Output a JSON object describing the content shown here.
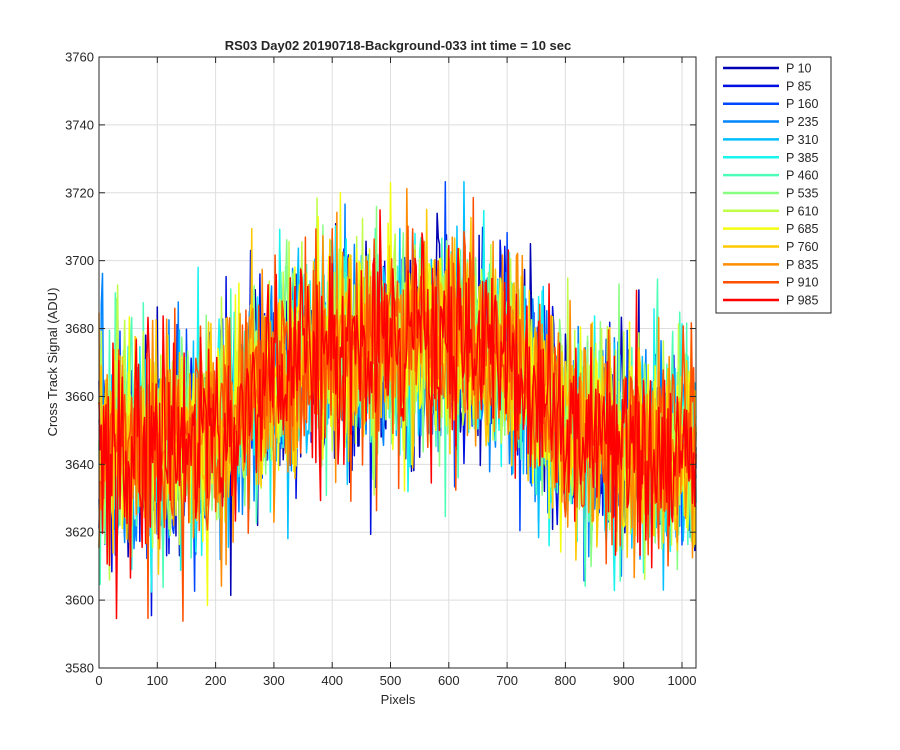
{
  "chart_data": {
    "type": "line",
    "title": "RS03 Day02 20190718-Background-033 int time = 10 sec",
    "xlabel": "Pixels",
    "ylabel": "Cross Track Signal (ADU)",
    "xlim": [
      0,
      1024
    ],
    "ylim": [
      3580,
      3760
    ],
    "xticks": [
      0,
      100,
      200,
      300,
      400,
      500,
      600,
      700,
      800,
      900,
      1000
    ],
    "yticks": [
      3580,
      3600,
      3620,
      3640,
      3660,
      3680,
      3700,
      3720,
      3740,
      3760
    ],
    "grid": true,
    "legend_position": "outside-right-top",
    "profile_shape": {
      "x": [
        0,
        100,
        200,
        300,
        400,
        500,
        600,
        700,
        800,
        900,
        1000,
        1024
      ],
      "mean_y": [
        3645,
        3645,
        3648,
        3665,
        3675,
        3676,
        3676,
        3672,
        3650,
        3645,
        3645,
        3645
      ],
      "spread_sd": 15
    },
    "series": [
      {
        "name": "P 10",
        "color": "#0000b4"
      },
      {
        "name": "P 85",
        "color": "#0010e0"
      },
      {
        "name": "P 160",
        "color": "#0048ff"
      },
      {
        "name": "P 235",
        "color": "#0084ff"
      },
      {
        "name": "P 310",
        "color": "#00c0ff"
      },
      {
        "name": "P 385",
        "color": "#18f4ee"
      },
      {
        "name": "P 460",
        "color": "#4cffb8"
      },
      {
        "name": "P 535",
        "color": "#88ff80"
      },
      {
        "name": "P 610",
        "color": "#c0ff48"
      },
      {
        "name": "P 685",
        "color": "#f4ff10"
      },
      {
        "name": "P 760",
        "color": "#ffc800"
      },
      {
        "name": "P 835",
        "color": "#ff8c00"
      },
      {
        "name": "P 910",
        "color": "#ff5000"
      },
      {
        "name": "P 985",
        "color": "#ff0000"
      }
    ]
  }
}
